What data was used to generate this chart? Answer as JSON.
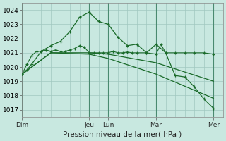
{
  "bg_color": "#c8e8e0",
  "grid_color": "#a0c8c0",
  "line_color": "#1a6b2a",
  "title": "Pression niveau de la mer( hPa )",
  "xlim": [
    0,
    21
  ],
  "ylim": [
    1016.5,
    1024.5
  ],
  "yticks": [
    1017,
    1018,
    1019,
    1020,
    1021,
    1022,
    1023,
    1024
  ],
  "day_labels": [
    "Dim",
    "Jeu",
    "Lun",
    "Mar",
    "Mer"
  ],
  "day_positions": [
    0,
    7,
    9,
    14,
    20
  ],
  "vline_positions": [
    0,
    7,
    9,
    14,
    20
  ],
  "line1_x": [
    0,
    0.5,
    1,
    1.5,
    2,
    2.5,
    3,
    3.5,
    4,
    4.5,
    5,
    5.5,
    6,
    6.5,
    7,
    7.5,
    8,
    8.5,
    9,
    9.5,
    10,
    10.5,
    11,
    11.5,
    12,
    13,
    14,
    14.5,
    15,
    16,
    17,
    18,
    19,
    20
  ],
  "line1_y": [
    1019.5,
    1020.2,
    1020.8,
    1021.1,
    1021.1,
    1021.2,
    1021.1,
    1021.2,
    1021.1,
    1021.1,
    1021.2,
    1021.3,
    1021.5,
    1021.4,
    1021.0,
    1021.0,
    1021.0,
    1021.0,
    1021.0,
    1021.1,
    1021.0,
    1021.0,
    1021.05,
    1021.0,
    1021.0,
    1021.0,
    1020.9,
    1021.6,
    1021.0,
    1021.0,
    1021.0,
    1021.0,
    1021.0,
    1020.9
  ],
  "line1_marker": "+",
  "line2_x": [
    0,
    3,
    7,
    9,
    14,
    20
  ],
  "line2_y": [
    1019.5,
    1021.0,
    1021.0,
    1020.9,
    1020.3,
    1019.0
  ],
  "line2_marker": "",
  "line3_x": [
    0,
    3,
    7,
    9,
    14,
    20
  ],
  "line3_y": [
    1019.5,
    1021.0,
    1020.9,
    1020.6,
    1019.5,
    1017.8
  ],
  "line3_marker": "",
  "line4_x": [
    0,
    0.5,
    1,
    2,
    3,
    4,
    5,
    6,
    7,
    8,
    9,
    10,
    11,
    12,
    13,
    14,
    15,
    16,
    17,
    18,
    19,
    20
  ],
  "line4_y": [
    1019.5,
    1019.8,
    1020.2,
    1021.1,
    1021.5,
    1021.8,
    1022.5,
    1023.5,
    1023.85,
    1023.2,
    1023.0,
    1022.1,
    1021.5,
    1021.6,
    1021.0,
    1021.6,
    1021.0,
    1019.4,
    1019.3,
    1018.6,
    1017.75,
    1017.1
  ],
  "line4_marker": "+"
}
